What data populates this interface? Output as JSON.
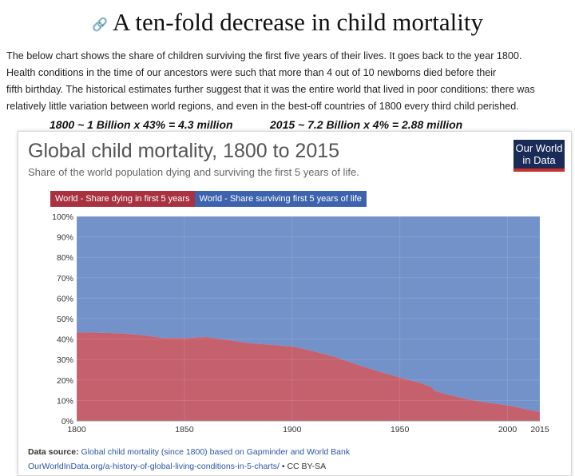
{
  "article": {
    "heading": "A ten-fold decrease in child mortality",
    "paragraph_lines": [
      "The below chart shows the share of children surviving the first five years of their lives. It goes back to the year 1800.",
      "Health conditions in the time of our ancestors were such that more than 4 out of 10 newborns died before their",
      "fifth birthday. The historical estimates further suggest that it was the entire world that lived in poor conditions: there was",
      "relatively little variation between world regions, and even in the best-off countries of 1800 every third child perished."
    ],
    "formula_1800": "1800 ~ 1 Billion x 43% = 4.3 million",
    "formula_2015": "2015 ~ 7.2 Billion x 4% = 2.88 million"
  },
  "logo": {
    "line1": "Our World",
    "line2": "in Data"
  },
  "source": {
    "label": "Data source:",
    "text": "Global child mortality (since 1800) based on Gapminder and World Bank",
    "url_text": "OurWorldInData.org/a-history-of-global-living-conditions-in-5-charts/",
    "license": " • CC BY-SA"
  },
  "chart_data": {
    "type": "area",
    "title": "Global child mortality, 1800 to 2015",
    "subtitle": "Share of the world population dying and surviving the first 5 years of life.",
    "legend_position": "top-left",
    "x": [
      1800,
      1810,
      1820,
      1830,
      1840,
      1850,
      1860,
      1870,
      1880,
      1890,
      1900,
      1910,
      1920,
      1930,
      1940,
      1950,
      1960,
      1965,
      1966,
      1970,
      1980,
      1990,
      2000,
      2010,
      2015
    ],
    "series": [
      {
        "name": "World - Share dying in first 5 years",
        "color": "#c0505e",
        "values": [
          43.3,
          43.1,
          42.8,
          42.0,
          40.6,
          40.5,
          41.0,
          39.6,
          38.0,
          37.2,
          36.4,
          34.1,
          31.2,
          27.6,
          24.2,
          21.2,
          18.4,
          16.4,
          14.8,
          13.5,
          10.9,
          9.0,
          7.6,
          5.4,
          4.3
        ]
      },
      {
        "name": "World - Share surviving first 5 years of life",
        "color": "#6b8cc7",
        "values": [
          56.7,
          56.9,
          57.2,
          58.0,
          59.4,
          59.5,
          59.0,
          60.4,
          62.0,
          62.8,
          63.6,
          65.9,
          68.8,
          72.4,
          75.8,
          78.8,
          81.6,
          83.6,
          85.2,
          86.5,
          89.1,
          91.0,
          92.4,
          94.6,
          95.7
        ]
      }
    ],
    "xlim": [
      1800,
      2015
    ],
    "ylim": [
      0,
      100
    ],
    "x_ticks": [
      "1800",
      "1850",
      "1900",
      "1950",
      "2000",
      "2015"
    ],
    "x_tick_values": [
      1800,
      1850,
      1900,
      1950,
      2000,
      2015
    ],
    "y_ticks": [
      "0%",
      "10%",
      "20%",
      "30%",
      "40%",
      "50%",
      "60%",
      "70%",
      "80%",
      "90%",
      "100%"
    ],
    "grid": true
  }
}
